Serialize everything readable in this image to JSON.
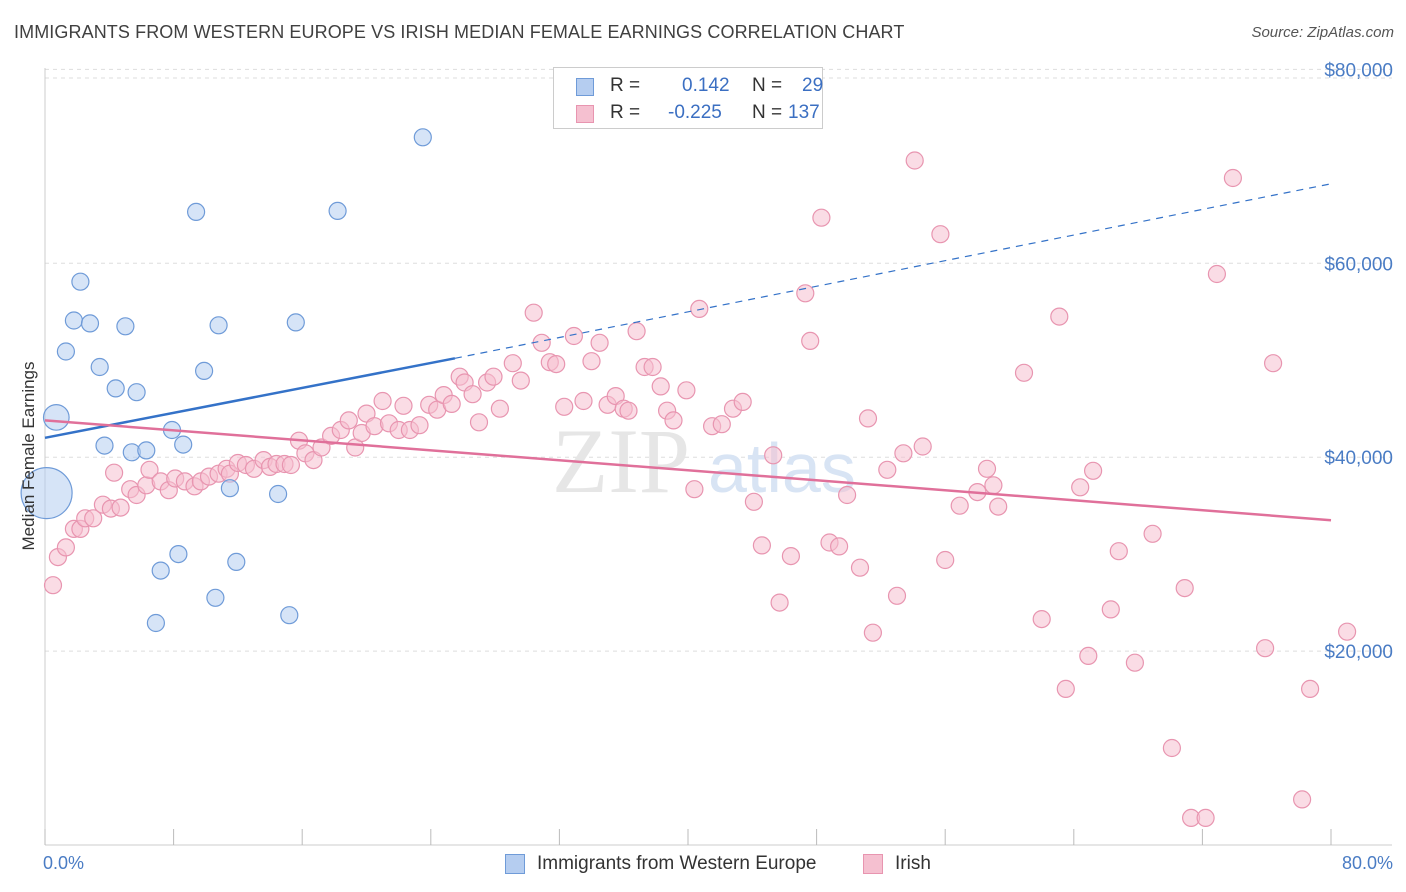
{
  "title": "IMMIGRANTS FROM WESTERN EUROPE VS IRISH MEDIAN FEMALE EARNINGS CORRELATION CHART",
  "source": "Source: ZipAtlas.com",
  "watermark": {
    "zip": "ZIP",
    "atlas": "atlas"
  },
  "legend": {
    "rows": [
      {
        "r_label": "R =",
        "r_value": "0.142",
        "n_label": "N =",
        "n_value": "29"
      },
      {
        "r_label": "R =",
        "r_value": "-0.225",
        "n_label": "N =",
        "n_value": "137"
      }
    ]
  },
  "colors": {
    "blue_fill": "#b5cdf0",
    "blue_stroke": "#6f9bd8",
    "blue_line": "#3472c8",
    "pink_fill": "#f5c0d0",
    "pink_stroke": "#e895b0",
    "pink_line": "#e0709a",
    "grid": "#dddddd",
    "tick_label": "#4a7cc4"
  },
  "chart_data": {
    "type": "scatter",
    "ylabel": "Median Female Earnings",
    "xlim": [
      0,
      80
    ],
    "ylim": [
      0,
      82000
    ],
    "x_tick_labels": [
      "0.0%",
      "80.0%"
    ],
    "y_ticks": [
      {
        "value": 20000,
        "label": "$20,000"
      },
      {
        "value": 40000,
        "label": "$40,000"
      },
      {
        "value": 60000,
        "label": "$60,000"
      },
      {
        "value": 80000,
        "label": "$80,000"
      }
    ],
    "grid": true,
    "legend_position": "bottom-center",
    "series": [
      {
        "name": "Immigrants from Western Europe",
        "color": "blue",
        "points": [
          [
            0.1,
            36300,
            3
          ],
          [
            0.7,
            44100,
            1.5
          ],
          [
            1.3,
            50900,
            1
          ],
          [
            1.8,
            54100,
            1
          ],
          [
            2.2,
            58100,
            1
          ],
          [
            2.8,
            53800,
            1
          ],
          [
            3.4,
            49300,
            1
          ],
          [
            4.4,
            47100,
            1
          ],
          [
            5.0,
            53500,
            1
          ],
          [
            5.7,
            46700,
            1
          ],
          [
            3.7,
            41200,
            1
          ],
          [
            5.4,
            40500,
            1
          ],
          [
            6.3,
            40700,
            1
          ],
          [
            7.9,
            42800,
            1
          ],
          [
            8.6,
            41300,
            1
          ],
          [
            9.4,
            65300,
            1
          ],
          [
            9.9,
            48900,
            1
          ],
          [
            10.8,
            53600,
            1
          ],
          [
            11.5,
            36800,
            1
          ],
          [
            14.5,
            36200,
            1
          ],
          [
            15.6,
            53900,
            1
          ],
          [
            18.2,
            65400,
            1
          ],
          [
            23.5,
            73000,
            1
          ],
          [
            8.3,
            30000,
            1
          ],
          [
            7.2,
            28300,
            1
          ],
          [
            11.9,
            29200,
            1
          ],
          [
            10.6,
            25500,
            1
          ],
          [
            6.9,
            22900,
            1
          ],
          [
            15.2,
            23700,
            1
          ]
        ]
      },
      {
        "name": "Irish",
        "color": "pink",
        "points": [
          [
            0.5,
            26800,
            1
          ],
          [
            0.8,
            29700,
            1
          ],
          [
            1.3,
            30700,
            1
          ],
          [
            1.8,
            32600,
            1
          ],
          [
            2.2,
            32600,
            1
          ],
          [
            2.5,
            33700,
            1
          ],
          [
            3.0,
            33700,
            1
          ],
          [
            3.6,
            35100,
            1
          ],
          [
            4.1,
            34700,
            1
          ],
          [
            4.3,
            38400,
            1
          ],
          [
            4.7,
            34800,
            1
          ],
          [
            5.3,
            36700,
            1
          ],
          [
            5.7,
            36100,
            1
          ],
          [
            6.3,
            37100,
            1
          ],
          [
            6.5,
            38700,
            1
          ],
          [
            7.2,
            37500,
            1
          ],
          [
            7.7,
            36600,
            1
          ],
          [
            8.1,
            37800,
            1
          ],
          [
            8.7,
            37500,
            1
          ],
          [
            9.3,
            37000,
            1
          ],
          [
            9.7,
            37500,
            1
          ],
          [
            10.2,
            38000,
            1
          ],
          [
            10.8,
            38300,
            1
          ],
          [
            11.3,
            38800,
            1
          ],
          [
            11.5,
            38300,
            1
          ],
          [
            12.0,
            39400,
            1
          ],
          [
            12.5,
            39200,
            1
          ],
          [
            13.0,
            38800,
            1
          ],
          [
            13.6,
            39700,
            1
          ],
          [
            14.0,
            39000,
            1
          ],
          [
            14.4,
            39300,
            1
          ],
          [
            14.9,
            39300,
            1
          ],
          [
            15.3,
            39200,
            1
          ],
          [
            15.8,
            41700,
            1
          ],
          [
            16.2,
            40400,
            1
          ],
          [
            16.7,
            39700,
            1
          ],
          [
            17.2,
            41000,
            1
          ],
          [
            17.8,
            42200,
            1
          ],
          [
            18.4,
            42800,
            1
          ],
          [
            18.9,
            43800,
            1
          ],
          [
            19.3,
            41000,
            1
          ],
          [
            19.7,
            42500,
            1
          ],
          [
            20.0,
            44500,
            1
          ],
          [
            20.5,
            43200,
            1
          ],
          [
            21.0,
            45800,
            1
          ],
          [
            21.4,
            43500,
            1
          ],
          [
            22.0,
            42800,
            1
          ],
          [
            22.3,
            45300,
            1
          ],
          [
            22.7,
            42800,
            1
          ],
          [
            23.3,
            43300,
            1
          ],
          [
            23.9,
            45400,
            1
          ],
          [
            24.4,
            44900,
            1
          ],
          [
            24.8,
            46400,
            1
          ],
          [
            25.3,
            45500,
            1
          ],
          [
            25.8,
            48300,
            1
          ],
          [
            26.1,
            47700,
            1
          ],
          [
            26.6,
            46500,
            1
          ],
          [
            27.0,
            43600,
            1
          ],
          [
            27.5,
            47700,
            1
          ],
          [
            27.9,
            48300,
            1
          ],
          [
            28.3,
            45000,
            1
          ],
          [
            29.1,
            49700,
            1
          ],
          [
            29.6,
            47900,
            1
          ],
          [
            30.4,
            54900,
            1
          ],
          [
            30.9,
            51800,
            1
          ],
          [
            31.4,
            49800,
            1
          ],
          [
            31.8,
            49600,
            1
          ],
          [
            32.3,
            45200,
            1
          ],
          [
            32.9,
            52500,
            1
          ],
          [
            33.5,
            45800,
            1
          ],
          [
            34.0,
            49900,
            1
          ],
          [
            34.5,
            51800,
            1
          ],
          [
            35.0,
            45400,
            1
          ],
          [
            35.5,
            46300,
            1
          ],
          [
            36.0,
            45000,
            1
          ],
          [
            36.3,
            44800,
            1
          ],
          [
            36.8,
            53000,
            1
          ],
          [
            37.3,
            49300,
            1
          ],
          [
            37.8,
            49300,
            1
          ],
          [
            38.3,
            47300,
            1
          ],
          [
            38.7,
            44800,
            1
          ],
          [
            39.1,
            43800,
            1
          ],
          [
            39.9,
            46900,
            1
          ],
          [
            40.4,
            36700,
            1
          ],
          [
            40.7,
            55300,
            1
          ],
          [
            41.5,
            43200,
            1
          ],
          [
            42.1,
            43400,
            1
          ],
          [
            42.8,
            45000,
            1
          ],
          [
            43.4,
            45700,
            1
          ],
          [
            44.1,
            35400,
            1
          ],
          [
            44.6,
            30900,
            1
          ],
          [
            45.3,
            40200,
            1
          ],
          [
            45.7,
            25000,
            1
          ],
          [
            46.4,
            29800,
            1
          ],
          [
            47.3,
            56900,
            1
          ],
          [
            47.6,
            52000,
            1
          ],
          [
            48.3,
            64700,
            1
          ],
          [
            48.8,
            31200,
            1
          ],
          [
            49.4,
            30800,
            1
          ],
          [
            49.9,
            36100,
            1
          ],
          [
            50.7,
            28600,
            1
          ],
          [
            51.2,
            44000,
            1
          ],
          [
            51.5,
            21900,
            1
          ],
          [
            52.4,
            38700,
            1
          ],
          [
            53.0,
            25700,
            1
          ],
          [
            53.4,
            40400,
            1
          ],
          [
            54.1,
            70600,
            1
          ],
          [
            54.6,
            41100,
            1
          ],
          [
            55.7,
            63000,
            1
          ],
          [
            56.0,
            29400,
            1
          ],
          [
            56.9,
            35000,
            1
          ],
          [
            58.0,
            36400,
            1
          ],
          [
            58.6,
            38800,
            1
          ],
          [
            59.0,
            37100,
            1
          ],
          [
            59.3,
            34900,
            1
          ],
          [
            60.9,
            48700,
            1
          ],
          [
            62.0,
            23300,
            1
          ],
          [
            63.1,
            54500,
            1
          ],
          [
            63.5,
            16100,
            1
          ],
          [
            64.4,
            36900,
            1
          ],
          [
            64.9,
            19500,
            1
          ],
          [
            65.2,
            38600,
            1
          ],
          [
            66.3,
            24300,
            1
          ],
          [
            66.8,
            30300,
            1
          ],
          [
            67.8,
            18800,
            1
          ],
          [
            68.9,
            32100,
            1
          ],
          [
            70.1,
            10000,
            1
          ],
          [
            70.9,
            26500,
            1
          ],
          [
            71.3,
            2800,
            1
          ],
          [
            72.2,
            2800,
            1
          ],
          [
            72.9,
            58900,
            1
          ],
          [
            73.9,
            68800,
            1
          ],
          [
            75.9,
            20300,
            1
          ],
          [
            76.4,
            49700,
            1
          ],
          [
            78.2,
            4700,
            1
          ],
          [
            78.7,
            16100,
            1
          ],
          [
            81.0,
            22000,
            1
          ]
        ]
      }
    ],
    "trend_lines": [
      {
        "series": "Immigrants from Western Europe",
        "solid": [
          [
            0,
            42000
          ],
          [
            25.5,
            50200
          ]
        ],
        "dashed": [
          [
            25.5,
            50200
          ],
          [
            80,
            68200
          ]
        ]
      },
      {
        "series": "Irish",
        "solid": [
          [
            0,
            43800
          ],
          [
            80,
            33500
          ]
        ]
      }
    ]
  },
  "bottom_legend": [
    {
      "label": "Immigrants from Western Europe",
      "color": "blue"
    },
    {
      "label": "Irish",
      "color": "pink"
    }
  ]
}
